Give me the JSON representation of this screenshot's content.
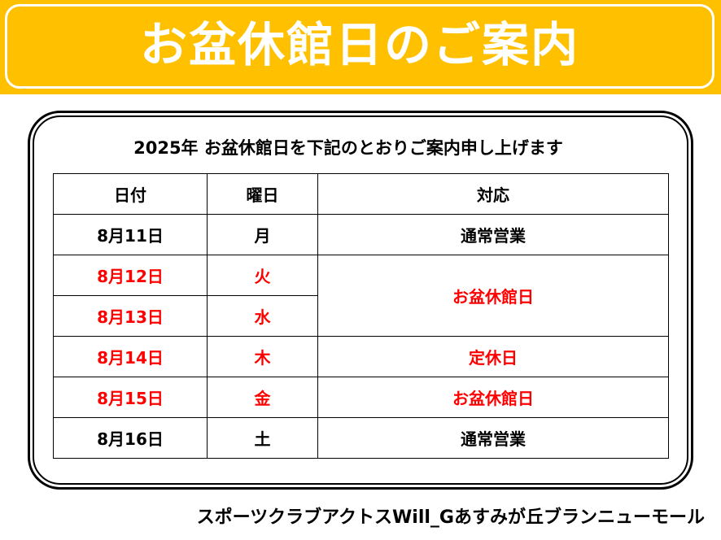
{
  "banner": {
    "title": "お盆休館日のご案内"
  },
  "notice": {
    "intro": "2025年 お盆休館日を下記のとおりご案内申し上げます"
  },
  "table": {
    "headers": {
      "date": "日付",
      "day": "曜日",
      "response": "対応"
    },
    "rows": [
      {
        "date": "8月11日",
        "day": "月",
        "response": "通常営業"
      },
      {
        "date": "8月12日",
        "day": "火",
        "response": "お盆休館日"
      },
      {
        "date": "8月13日",
        "day": "水"
      },
      {
        "date": "8月14日",
        "day": "木",
        "response": "定休日"
      },
      {
        "date": "8月15日",
        "day": "金",
        "response": "お盆休館日"
      },
      {
        "date": "8月16日",
        "day": "土",
        "response": "通常営業"
      }
    ]
  },
  "footer": {
    "organization": "スポーツクラブアクトスWill_Gあすみが丘ブランニューモール"
  },
  "colors": {
    "banner_background": "#ffc000",
    "closed_text": "#ff0000",
    "normal_text": "#000000"
  }
}
